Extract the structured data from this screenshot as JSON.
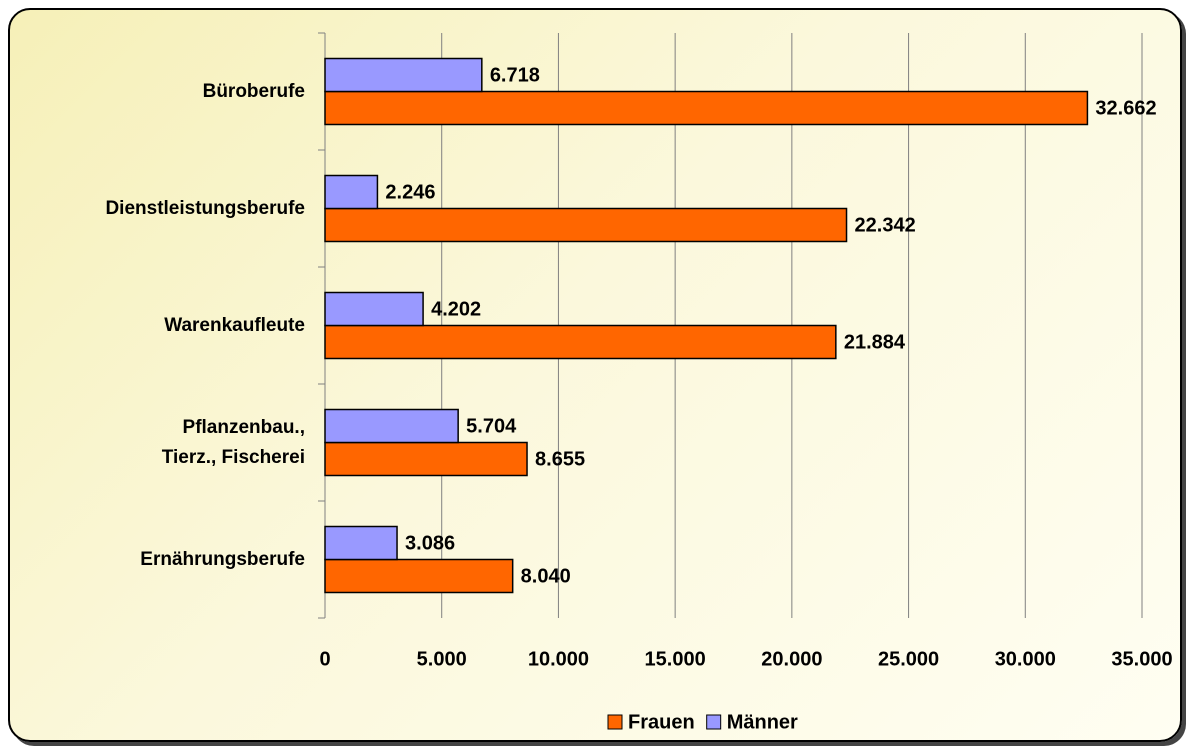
{
  "chart_data": {
    "type": "hbar",
    "categories": [
      "Büroberufe",
      "Dienstleistungsberufe",
      "Warenkaufleute",
      "Pflanzenbau.,\nTierz., Fischerei",
      "Ernährungsberufe"
    ],
    "series": [
      {
        "name": "Frauen",
        "color": "#ff6600",
        "values": [
          32662,
          22342,
          21884,
          8655,
          8040
        ],
        "value_labels": [
          "32.662",
          "22.342",
          "21.884",
          "8.655",
          "8.040"
        ]
      },
      {
        "name": "Männer",
        "color": "#9999ff",
        "values": [
          6718,
          2246,
          4202,
          5704,
          3086
        ],
        "value_labels": [
          "6.718",
          "2.246",
          "4.202",
          "5.704",
          "3.086"
        ]
      }
    ],
    "xlim": [
      0,
      35000
    ],
    "xticks": [
      0,
      {
        "value": 5000,
        "label": "5.000"
      },
      {
        "value": 10000,
        "label": "10.000"
      },
      {
        "value": 15000,
        "label": "15.000"
      },
      {
        "value": 20000,
        "label": "20.000"
      },
      {
        "value": 25000,
        "label": "25.000"
      },
      {
        "value": 30000,
        "label": "30.000"
      },
      {
        "value": 35000,
        "label": "35.000"
      }
    ],
    "grid": true,
    "legend": "bottom"
  }
}
